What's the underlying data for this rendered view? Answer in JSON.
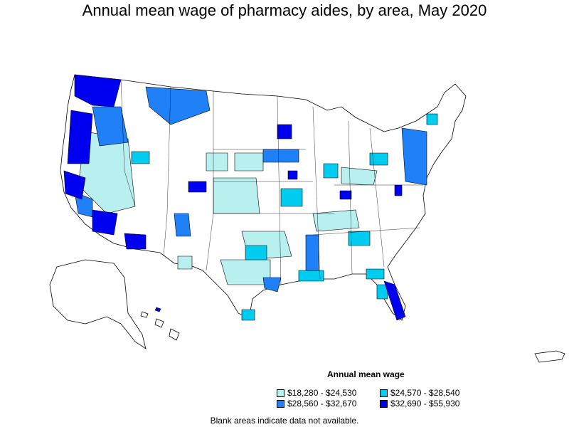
{
  "title": "Annual mean wage of pharmacy aides, by area, May 2020",
  "legend": {
    "title": "Annual mean wage",
    "items": [
      {
        "label": "$18,280 - $24,530",
        "color": "#b8f0f0"
      },
      {
        "label": "$24,570 - $28,540",
        "color": "#00ccf0"
      },
      {
        "label": "$28,560 - $32,670",
        "color": "#2080f8"
      },
      {
        "label": "$32,690 - $55,930",
        "color": "#0000f0"
      }
    ]
  },
  "footnote": "Blank areas indicate data not available.",
  "colors": {
    "border": "#000000",
    "nodata": "#ffffff"
  }
}
